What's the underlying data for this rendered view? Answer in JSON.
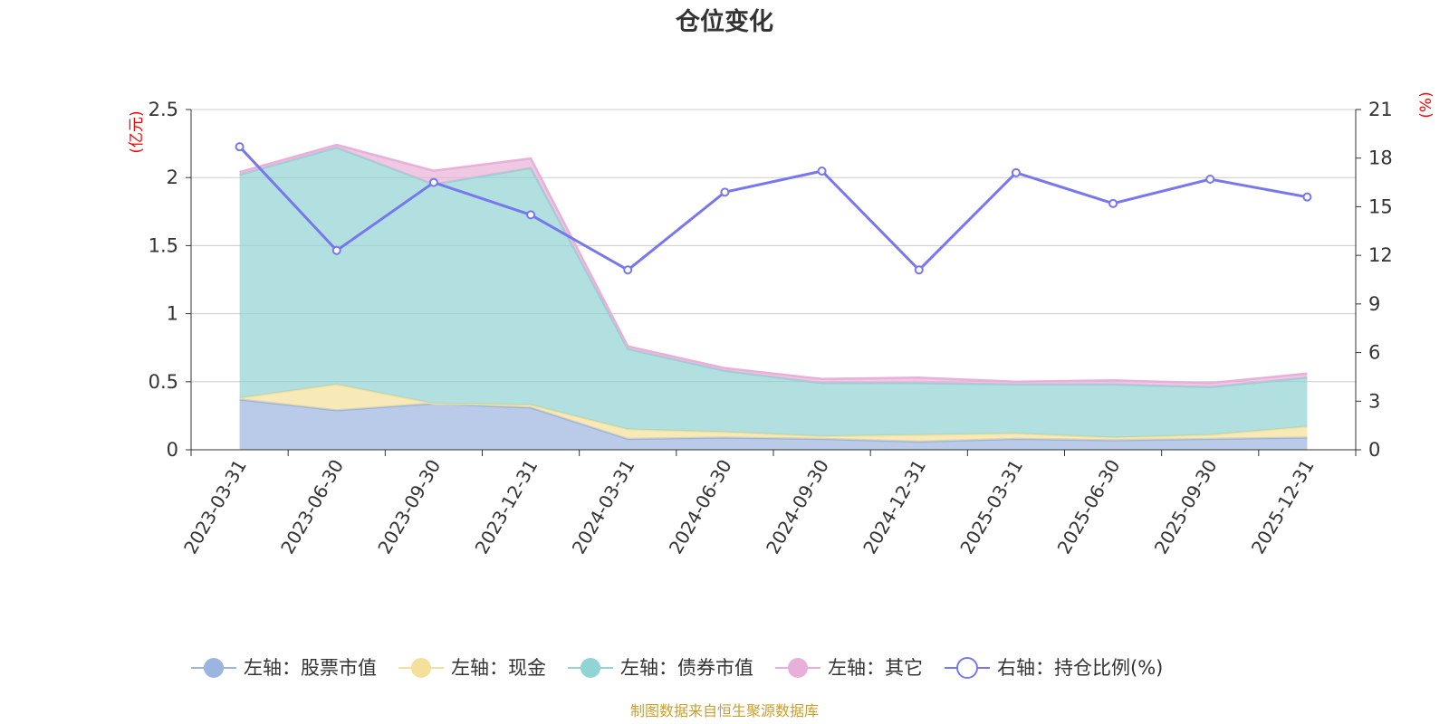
{
  "chart_data": {
    "type": "area",
    "title": "仓位变化",
    "categories": [
      "2023-03-31",
      "2023-06-30",
      "2023-09-30",
      "2023-12-31",
      "2024-03-31",
      "2024-06-30",
      "2024-09-30",
      "2024-12-31",
      "2025-03-31",
      "2025-06-30",
      "2025-09-30",
      "2025-12-31"
    ],
    "left_axis": {
      "unit": "(亿元)",
      "min": 0,
      "max": 2.5,
      "ticks": [
        "0",
        "0.5",
        "1",
        "1.5",
        "2",
        "2.5"
      ]
    },
    "right_axis": {
      "unit": "(%)",
      "min": 0,
      "max": 21,
      "ticks": [
        "0",
        "3",
        "6",
        "9",
        "12",
        "15",
        "18",
        "21"
      ]
    },
    "stacked_series": [
      {
        "name": "左轴：股票市值",
        "color": "#9bb5e0",
        "values": [
          0.37,
          0.29,
          0.34,
          0.31,
          0.08,
          0.09,
          0.08,
          0.06,
          0.08,
          0.07,
          0.08,
          0.09
        ]
      },
      {
        "name": "左轴：现金",
        "color": "#f5e09b",
        "values": [
          0.01,
          0.19,
          0.0,
          0.02,
          0.07,
          0.04,
          0.02,
          0.05,
          0.04,
          0.02,
          0.03,
          0.08
        ]
      },
      {
        "name": "左轴：债券市值",
        "color": "#92d3d3",
        "values": [
          1.64,
          1.74,
          1.61,
          1.74,
          0.59,
          0.45,
          0.39,
          0.38,
          0.36,
          0.39,
          0.35,
          0.36
        ]
      },
      {
        "name": "左轴：其它",
        "color": "#e8b0d8",
        "values": [
          0.02,
          0.02,
          0.1,
          0.07,
          0.02,
          0.02,
          0.03,
          0.04,
          0.02,
          0.03,
          0.03,
          0.03
        ]
      }
    ],
    "line_series": {
      "name": "右轴：持仓比例(%)",
      "color": "#7777ee",
      "values": [
        18.7,
        12.3,
        16.5,
        14.5,
        11.1,
        15.9,
        17.2,
        11.1,
        17.1,
        15.2,
        16.7,
        15.6
      ]
    },
    "source_note": "制图数据来自恒生聚源数据库"
  }
}
